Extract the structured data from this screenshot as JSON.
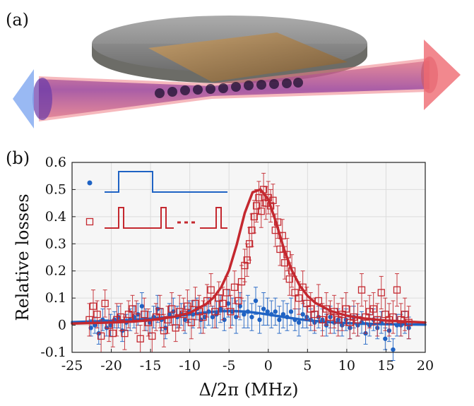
{
  "panels": {
    "a": "(a)",
    "b": "(b)"
  },
  "colors": {
    "blue": "#1f63c4",
    "red": "#c4282f",
    "grid": "#dcdcdc",
    "plot_bg": "#f6f6f6"
  },
  "chart_data": {
    "type": "scatter",
    "xlabel": "Δ/2π (MHz)",
    "ylabel": "Relative losses",
    "xlim": [
      -25,
      20
    ],
    "ylim": [
      -0.1,
      0.6
    ],
    "xticks": [
      -25,
      -20,
      -15,
      -10,
      -5,
      0,
      5,
      10,
      15,
      20
    ],
    "yticks": [
      -0.1,
      0,
      0.1,
      0.2,
      0.3,
      0.4,
      0.5,
      0.6
    ],
    "grid": true,
    "legend_placement": "top-left",
    "series": [
      {
        "marker": "dot",
        "color": "#1f63c4",
        "points": [
          [
            -22.6,
            -0.01,
            0.03
          ],
          [
            -22.1,
            0.0,
            0.03
          ],
          [
            -21.6,
            -0.03,
            0.04
          ],
          [
            -21.1,
            0.02,
            0.04
          ],
          [
            -20.6,
            -0.01,
            0.03
          ],
          [
            -20.1,
            0.0,
            0.04
          ],
          [
            -19.6,
            0.02,
            0.03
          ],
          [
            -19.1,
            0.03,
            0.04
          ],
          [
            -18.6,
            -0.02,
            0.04
          ],
          [
            -18.1,
            0.01,
            0.03
          ],
          [
            -17.6,
            0.02,
            0.04
          ],
          [
            -17.1,
            0.03,
            0.04
          ],
          [
            -16.6,
            0.04,
            0.04
          ],
          [
            -16.1,
            0.07,
            0.05
          ],
          [
            -15.6,
            0.02,
            0.04
          ],
          [
            -15.1,
            0.01,
            0.04
          ],
          [
            -14.6,
            0.03,
            0.04
          ],
          [
            -14.1,
            0.06,
            0.05
          ],
          [
            -13.6,
            0.02,
            0.04
          ],
          [
            -13.1,
            -0.01,
            0.04
          ],
          [
            -12.6,
            0.04,
            0.04
          ],
          [
            -12.1,
            0.05,
            0.05
          ],
          [
            -11.6,
            0.03,
            0.04
          ],
          [
            -11.1,
            0.04,
            0.04
          ],
          [
            -10.6,
            0.02,
            0.05
          ],
          [
            -10.1,
            0.05,
            0.04
          ],
          [
            -9.6,
            0.04,
            0.05
          ],
          [
            -9.1,
            0.06,
            0.04
          ],
          [
            -8.6,
            0.02,
            0.05
          ],
          [
            -8.1,
            0.03,
            0.04
          ],
          [
            -7.6,
            0.05,
            0.05
          ],
          [
            -7.1,
            0.03,
            0.04
          ],
          [
            -6.6,
            0.04,
            0.05
          ],
          [
            -6.1,
            0.06,
            0.05
          ],
          [
            -5.6,
            0.02,
            0.04
          ],
          [
            -5.1,
            0.08,
            0.05
          ],
          [
            -4.6,
            0.05,
            0.05
          ],
          [
            -4.1,
            0.03,
            0.06
          ],
          [
            -3.6,
            0.07,
            0.05
          ],
          [
            -3.1,
            0.04,
            0.05
          ],
          [
            -2.6,
            0.05,
            0.06
          ],
          [
            -2.1,
            0.03,
            0.05
          ],
          [
            -1.6,
            0.09,
            0.05
          ],
          [
            -1.1,
            0.02,
            0.05
          ],
          [
            -0.6,
            0.06,
            0.06
          ],
          [
            -0.1,
            0.05,
            0.05
          ],
          [
            0.4,
            0.04,
            0.05
          ],
          [
            0.9,
            0.05,
            0.05
          ],
          [
            1.4,
            0.02,
            0.05
          ],
          [
            1.9,
            0.04,
            0.05
          ],
          [
            2.4,
            0.03,
            0.05
          ],
          [
            2.9,
            0.05,
            0.05
          ],
          [
            3.4,
            0.02,
            0.04
          ],
          [
            3.9,
            0.01,
            0.05
          ],
          [
            4.4,
            0.04,
            0.05
          ],
          [
            4.9,
            0.03,
            0.04
          ],
          [
            5.4,
            0.02,
            0.04
          ],
          [
            5.9,
            0.01,
            0.04
          ],
          [
            6.4,
            0.03,
            0.04
          ],
          [
            6.9,
            0.02,
            0.04
          ],
          [
            7.4,
            0.0,
            0.04
          ],
          [
            7.9,
            0.03,
            0.04
          ],
          [
            8.4,
            0.01,
            0.04
          ],
          [
            8.9,
            0.02,
            0.04
          ],
          [
            9.4,
            0.0,
            0.04
          ],
          [
            9.9,
            0.02,
            0.04
          ],
          [
            10.4,
            -0.01,
            0.04
          ],
          [
            10.9,
            0.03,
            0.04
          ],
          [
            11.4,
            0.0,
            0.04
          ],
          [
            11.9,
            0.01,
            0.04
          ],
          [
            12.4,
            -0.03,
            0.04
          ],
          [
            12.9,
            0.0,
            0.04
          ],
          [
            13.4,
            0.02,
            0.04
          ],
          [
            13.9,
            -0.01,
            0.04
          ],
          [
            14.4,
            0.01,
            0.04
          ],
          [
            14.9,
            -0.05,
            0.04
          ],
          [
            15.4,
            -0.02,
            0.04
          ],
          [
            15.9,
            -0.09,
            0.04
          ],
          [
            16.4,
            0.0,
            0.04
          ],
          [
            16.9,
            0.0,
            0.04
          ],
          [
            17.4,
            0.01,
            0.04
          ],
          [
            17.9,
            -0.01,
            0.04
          ]
        ],
        "fit": [
          [
            -25,
            0.0115
          ],
          [
            -20,
            0.0159
          ],
          [
            -17,
            0.0201
          ],
          [
            -15,
            0.0239
          ],
          [
            -12,
            0.0323
          ],
          [
            -10,
            0.0397
          ],
          [
            -8,
            0.0471
          ],
          [
            -6,
            0.0517
          ],
          [
            -5,
            0.0522
          ],
          [
            -4,
            0.0517
          ],
          [
            -3,
            0.0501
          ],
          [
            -2,
            0.0473
          ],
          [
            -1,
            0.0436
          ],
          [
            0,
            0.0392
          ],
          [
            2,
            0.03
          ],
          [
            4,
            0.0218
          ],
          [
            6,
            0.0155
          ],
          [
            8,
            0.0109
          ],
          [
            10,
            0.0078
          ],
          [
            12,
            0.0057
          ],
          [
            15,
            0.0038
          ],
          [
            20,
            0.0021
          ]
        ]
      },
      {
        "marker": "open-square",
        "color": "#c4282f",
        "points": [
          [
            -22.8,
            0.02,
            0.06
          ],
          [
            -22.3,
            0.07,
            0.06
          ],
          [
            -21.8,
            0.04,
            0.05
          ],
          [
            -21.3,
            -0.04,
            0.06
          ],
          [
            -20.8,
            0.08,
            0.05
          ],
          [
            -20.3,
            0.0,
            0.06
          ],
          [
            -19.8,
            -0.03,
            0.05
          ],
          [
            -19.3,
            0.02,
            0.06
          ],
          [
            -18.8,
            0.03,
            0.05
          ],
          [
            -18.3,
            -0.03,
            0.06
          ],
          [
            -17.8,
            0.04,
            0.05
          ],
          [
            -17.3,
            0.06,
            0.05
          ],
          [
            -16.8,
            0.03,
            0.06
          ],
          [
            -16.3,
            -0.05,
            0.05
          ],
          [
            -15.8,
            0.04,
            0.06
          ],
          [
            -15.3,
            0.01,
            0.05
          ],
          [
            -14.8,
            -0.04,
            0.06
          ],
          [
            -14.3,
            0.03,
            0.05
          ],
          [
            -13.8,
            0.05,
            0.06
          ],
          [
            -13.3,
            -0.02,
            0.06
          ],
          [
            -12.8,
            0.02,
            0.05
          ],
          [
            -12.3,
            0.06,
            0.06
          ],
          [
            -11.8,
            -0.01,
            0.05
          ],
          [
            -11.3,
            0.05,
            0.06
          ],
          [
            -10.8,
            0.04,
            0.06
          ],
          [
            -10.3,
            0.07,
            0.06
          ],
          [
            -9.8,
            0.01,
            0.06
          ],
          [
            -9.3,
            0.08,
            0.06
          ],
          [
            -8.8,
            0.05,
            0.06
          ],
          [
            -8.3,
            0.03,
            0.06
          ],
          [
            -7.8,
            0.09,
            0.06
          ],
          [
            -7.3,
            0.13,
            0.06
          ],
          [
            -6.8,
            0.05,
            0.06
          ],
          [
            -6.3,
            0.1,
            0.06
          ],
          [
            -5.8,
            0.08,
            0.06
          ],
          [
            -5.3,
            0.12,
            0.06
          ],
          [
            -4.8,
            0.05,
            0.06
          ],
          [
            -4.3,
            0.14,
            0.06
          ],
          [
            -3.8,
            0.09,
            0.06
          ],
          [
            -3.4,
            0.16,
            0.06
          ],
          [
            -3.0,
            0.22,
            0.06
          ],
          [
            -2.7,
            0.24,
            0.06
          ],
          [
            -2.4,
            0.3,
            0.06
          ],
          [
            -2.1,
            0.35,
            0.06
          ],
          [
            -1.8,
            0.4,
            0.06
          ],
          [
            -1.5,
            0.44,
            0.06
          ],
          [
            -1.2,
            0.47,
            0.06
          ],
          [
            -0.9,
            0.42,
            0.06
          ],
          [
            -0.6,
            0.5,
            0.06
          ],
          [
            -0.3,
            0.45,
            0.06
          ],
          [
            0.0,
            0.47,
            0.06
          ],
          [
            0.3,
            0.44,
            0.06
          ],
          [
            0.6,
            0.46,
            0.06
          ],
          [
            0.9,
            0.35,
            0.06
          ],
          [
            1.2,
            0.38,
            0.06
          ],
          [
            1.5,
            0.28,
            0.06
          ],
          [
            1.8,
            0.33,
            0.06
          ],
          [
            2.1,
            0.23,
            0.06
          ],
          [
            2.4,
            0.26,
            0.06
          ],
          [
            2.7,
            0.17,
            0.06
          ],
          [
            3.0,
            0.2,
            0.06
          ],
          [
            3.4,
            0.12,
            0.06
          ],
          [
            3.9,
            0.1,
            0.06
          ],
          [
            4.4,
            0.14,
            0.06
          ],
          [
            4.9,
            0.08,
            0.06
          ],
          [
            5.4,
            0.06,
            0.06
          ],
          [
            5.9,
            0.04,
            0.06
          ],
          [
            6.4,
            0.09,
            0.06
          ],
          [
            6.9,
            0.02,
            0.06
          ],
          [
            7.4,
            0.06,
            0.06
          ],
          [
            7.9,
            0.03,
            0.06
          ],
          [
            8.4,
            0.05,
            0.06
          ],
          [
            8.9,
            0.02,
            0.06
          ],
          [
            9.4,
            0.04,
            0.06
          ],
          [
            9.9,
            0.06,
            0.06
          ],
          [
            10.4,
            0.01,
            0.06
          ],
          [
            10.9,
            0.03,
            0.06
          ],
          [
            11.4,
            0.02,
            0.06
          ],
          [
            11.9,
            0.13,
            0.06
          ],
          [
            12.4,
            0.03,
            0.06
          ],
          [
            12.9,
            0.05,
            0.06
          ],
          [
            13.4,
            0.06,
            0.06
          ],
          [
            13.9,
            0.02,
            0.06
          ],
          [
            14.4,
            0.12,
            0.06
          ],
          [
            14.9,
            0.04,
            0.06
          ],
          [
            15.4,
            0.02,
            0.06
          ],
          [
            15.9,
            0.03,
            0.06
          ],
          [
            16.4,
            0.13,
            0.06
          ],
          [
            16.9,
            0.02,
            0.06
          ],
          [
            17.4,
            0.04,
            0.06
          ],
          [
            17.9,
            0.01,
            0.06
          ]
        ],
        "fit": [
          [
            -25,
            0.0062
          ],
          [
            -20,
            0.0099
          ],
          [
            -17,
            0.014
          ],
          [
            -15,
            0.0186
          ],
          [
            -12,
            0.031
          ],
          [
            -10,
            0.0461
          ],
          [
            -8,
            0.0765
          ],
          [
            -7,
            0.1012
          ],
          [
            -6,
            0.1396
          ],
          [
            -5,
            0.202
          ],
          [
            -4,
            0.299
          ],
          [
            -3,
            0.4129
          ],
          [
            -2,
            0.4898
          ],
          [
            -1,
            0.5
          ],
          [
            0,
            0.464
          ],
          [
            1,
            0.378
          ],
          [
            2,
            0.2808
          ],
          [
            3,
            0.2024
          ],
          [
            4,
            0.1465
          ],
          [
            5,
            0.1085
          ],
          [
            6,
            0.0824
          ],
          [
            8,
            0.0516
          ],
          [
            10,
            0.0352
          ],
          [
            12,
            0.0255
          ],
          [
            15,
            0.017
          ],
          [
            20,
            0.01
          ]
        ]
      }
    ]
  }
}
